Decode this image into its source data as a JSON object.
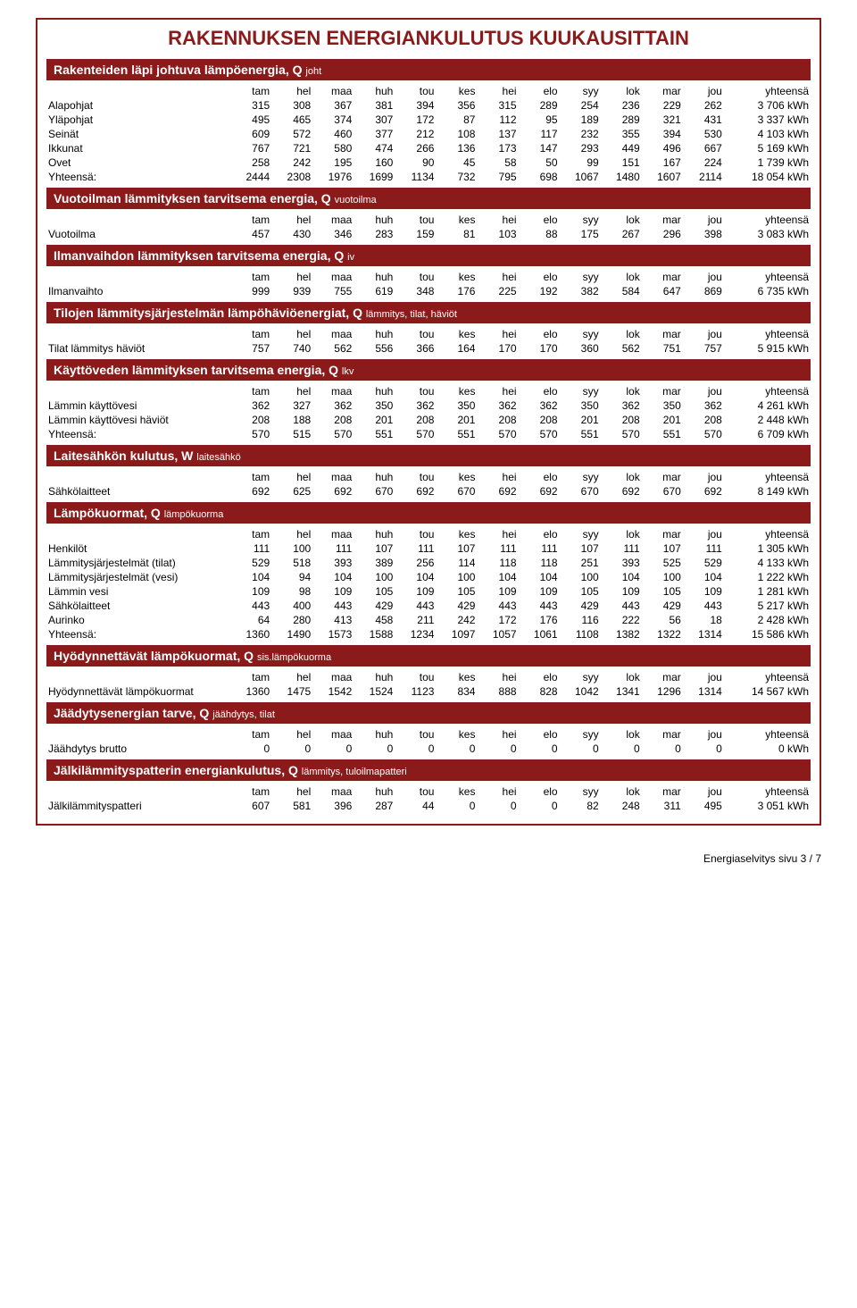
{
  "title": "RAKENNUKSEN ENERGIANKULUTUS KUUKAUSITTAIN",
  "months": [
    "tam",
    "hel",
    "maa",
    "huh",
    "tou",
    "kes",
    "hei",
    "elo",
    "syy",
    "lok",
    "mar",
    "jou"
  ],
  "total_label": "yhteensä",
  "yhteensa_row": "Yhteensä:",
  "footer": "Energiaselvitys sivu 3 / 7",
  "sections": [
    {
      "title_main": "Rakenteiden läpi johtuva lämpöenergia, Q ",
      "title_sub": "joht",
      "rows": [
        {
          "label": "Alapohjat",
          "v": [
            315,
            308,
            367,
            381,
            394,
            356,
            315,
            289,
            254,
            236,
            229,
            262
          ],
          "t": "3 706 kWh"
        },
        {
          "label": "Yläpohjat",
          "v": [
            495,
            465,
            374,
            307,
            172,
            87,
            112,
            95,
            189,
            289,
            321,
            431
          ],
          "t": "3 337 kWh"
        },
        {
          "label": "Seinät",
          "v": [
            609,
            572,
            460,
            377,
            212,
            108,
            137,
            117,
            232,
            355,
            394,
            530
          ],
          "t": "4 103 kWh"
        },
        {
          "label": "Ikkunat",
          "v": [
            767,
            721,
            580,
            474,
            266,
            136,
            173,
            147,
            293,
            449,
            496,
            667
          ],
          "t": "5 169 kWh"
        },
        {
          "label": "Ovet",
          "v": [
            258,
            242,
            195,
            160,
            90,
            45,
            58,
            50,
            99,
            151,
            167,
            224
          ],
          "t": "1 739 kWh"
        },
        {
          "label": "Yhteensä:",
          "v": [
            2444,
            2308,
            1976,
            1699,
            1134,
            732,
            795,
            698,
            1067,
            1480,
            1607,
            2114
          ],
          "t": "18 054 kWh"
        }
      ]
    },
    {
      "title_main": "Vuotoilman lämmityksen tarvitsema energia, Q ",
      "title_sub": "vuotoilma",
      "rows": [
        {
          "label": "Vuotoilma",
          "v": [
            457,
            430,
            346,
            283,
            159,
            81,
            103,
            88,
            175,
            267,
            296,
            398
          ],
          "t": "3 083 kWh"
        }
      ]
    },
    {
      "title_main": "Ilmanvaihdon lämmityksen tarvitsema energia, Q ",
      "title_sub": "iv",
      "rows": [
        {
          "label": "Ilmanvaihto",
          "v": [
            999,
            939,
            755,
            619,
            348,
            176,
            225,
            192,
            382,
            584,
            647,
            869
          ],
          "t": "6 735 kWh"
        }
      ]
    },
    {
      "title_main": "Tilojen lämmitysjärjestelmän lämpöhäviöenergiat, Q ",
      "title_sub": "lämmitys, tilat, häviöt",
      "rows": [
        {
          "label": "Tilat lämmitys häviöt",
          "v": [
            757,
            740,
            562,
            556,
            366,
            164,
            170,
            170,
            360,
            562,
            751,
            757
          ],
          "t": "5 915 kWh"
        }
      ]
    },
    {
      "title_main": "Käyttöveden lämmityksen tarvitsema energia, Q ",
      "title_sub": "lkv",
      "rows": [
        {
          "label": "Lämmin käyttövesi",
          "v": [
            362,
            327,
            362,
            350,
            362,
            350,
            362,
            362,
            350,
            362,
            350,
            362
          ],
          "t": "4 261 kWh"
        },
        {
          "label": "Lämmin käyttövesi häviöt",
          "v": [
            208,
            188,
            208,
            201,
            208,
            201,
            208,
            208,
            201,
            208,
            201,
            208
          ],
          "t": "2 448 kWh"
        },
        {
          "label": "Yhteensä:",
          "v": [
            570,
            515,
            570,
            551,
            570,
            551,
            570,
            570,
            551,
            570,
            551,
            570
          ],
          "t": "6 709 kWh"
        }
      ]
    },
    {
      "title_main": "Laitesähkön kulutus, W ",
      "title_sub": "laitesähkö",
      "rows": [
        {
          "label": "Sähkölaitteet",
          "v": [
            692,
            625,
            692,
            670,
            692,
            670,
            692,
            692,
            670,
            692,
            670,
            692
          ],
          "t": "8 149 kWh"
        }
      ]
    },
    {
      "title_main": "Lämpökuormat, Q ",
      "title_sub": "lämpökuorma",
      "rows": [
        {
          "label": "Henkilöt",
          "v": [
            111,
            100,
            111,
            107,
            111,
            107,
            111,
            111,
            107,
            111,
            107,
            111
          ],
          "t": "1 305 kWh"
        },
        {
          "label": "Lämmitysjärjestelmät (tilat)",
          "v": [
            529,
            518,
            393,
            389,
            256,
            114,
            118,
            118,
            251,
            393,
            525,
            529
          ],
          "t": "4 133 kWh"
        },
        {
          "label": "Lämmitysjärjestelmät (vesi)",
          "v": [
            104,
            94,
            104,
            100,
            104,
            100,
            104,
            104,
            100,
            104,
            100,
            104
          ],
          "t": "1 222 kWh"
        },
        {
          "label": "Lämmin vesi",
          "v": [
            109,
            98,
            109,
            105,
            109,
            105,
            109,
            109,
            105,
            109,
            105,
            109
          ],
          "t": "1 281 kWh"
        },
        {
          "label": "Sähkölaitteet",
          "v": [
            443,
            400,
            443,
            429,
            443,
            429,
            443,
            443,
            429,
            443,
            429,
            443
          ],
          "t": "5 217 kWh"
        },
        {
          "label": "Aurinko",
          "v": [
            64,
            280,
            413,
            458,
            211,
            242,
            172,
            176,
            116,
            222,
            56,
            18
          ],
          "t": "2 428 kWh"
        },
        {
          "label": "Yhteensä:",
          "v": [
            1360,
            1490,
            1573,
            1588,
            1234,
            1097,
            1057,
            1061,
            1108,
            1382,
            1322,
            1314
          ],
          "t": "15 586 kWh"
        }
      ]
    },
    {
      "title_main": "Hyödynnettävät lämpökuormat, Q ",
      "title_sub": "sis.lämpökuorma",
      "rows": [
        {
          "label": "Hyödynnettävät lämpökuormat",
          "v": [
            1360,
            1475,
            1542,
            1524,
            1123,
            834,
            888,
            828,
            1042,
            1341,
            1296,
            1314
          ],
          "t": "14 567 kWh"
        }
      ]
    },
    {
      "title_main": "Jäädytysenergian tarve, Q ",
      "title_sub": "jäähdytys, tilat",
      "rows": [
        {
          "label": "Jäähdytys brutto",
          "v": [
            0,
            0,
            0,
            0,
            0,
            0,
            0,
            0,
            0,
            0,
            0,
            0
          ],
          "t": "0 kWh"
        }
      ]
    },
    {
      "title_main": "Jälkilämmityspatterin energiankulutus, Q ",
      "title_sub": "lämmitys, tuloilmapatteri",
      "rows": [
        {
          "label": "Jälkilämmityspatteri",
          "v": [
            607,
            581,
            396,
            287,
            44,
            0,
            0,
            0,
            82,
            248,
            311,
            495
          ],
          "t": "3 051 kWh"
        }
      ]
    }
  ]
}
